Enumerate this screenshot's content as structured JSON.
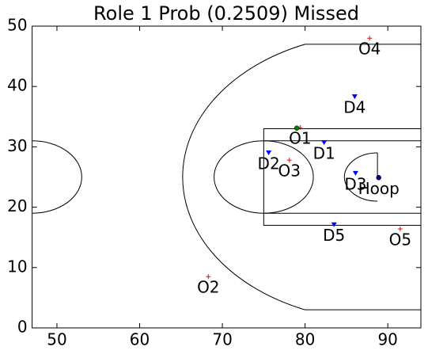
{
  "chart_data": {
    "type": "scatter",
    "title": "Role 1 Prob (0.2509) Missed",
    "xlim": [
      47,
      94
    ],
    "ylim": [
      0,
      50
    ],
    "xticks": [
      50,
      60,
      70,
      80,
      90
    ],
    "yticks": [
      0,
      10,
      20,
      30,
      40,
      50
    ],
    "series": [
      {
        "color": "#ff0000",
        "marker": "plus",
        "x": [
          79.4,
          68.3,
          78.1,
          87.8,
          91.5
        ],
        "y": [
          33.2,
          8.5,
          27.8,
          48.0,
          16.4
        ],
        "labels": [
          "O1",
          "O2",
          "O3",
          "O4",
          "O5"
        ]
      },
      {
        "color": "#0000ff",
        "marker": "triangle",
        "x": [
          82.3,
          75.6,
          86.1,
          86.0,
          83.5
        ],
        "y": [
          30.7,
          29.0,
          25.6,
          38.3,
          17.1
        ],
        "labels": [
          "D1",
          "D2",
          "D3",
          "D4",
          "D5"
        ]
      },
      {
        "color": "#008000",
        "marker": "dot",
        "x": [
          79.0
        ],
        "y": [
          33.1
        ]
      },
      {
        "color": "#000080",
        "marker": "dot",
        "x": [
          88.9
        ],
        "y": [
          24.9
        ],
        "labels": [
          "Hoop"
        ]
      }
    ]
  }
}
